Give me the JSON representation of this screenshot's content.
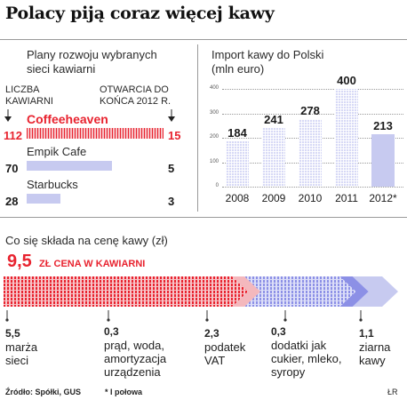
{
  "title": "Polacy piją coraz więcej kawy",
  "left_panel": {
    "subtitle_line1": "Plany rozwoju wybranych",
    "subtitle_line2": "sieci kawiarni",
    "col_left_line1": "LICZBA",
    "col_left_line2": "KAWIARNI",
    "col_right_line1": "OTWARCIA DO",
    "col_right_line2": "KOŃCA 2012 R.",
    "chains": [
      {
        "name": "Coffeeheaven",
        "cafes": "112",
        "openings": "15"
      },
      {
        "name": "Empik Cafe",
        "cafes": "70",
        "openings": "5"
      },
      {
        "name": "Starbucks",
        "cafes": "28",
        "openings": "3"
      }
    ]
  },
  "chart_data": [
    {
      "type": "bar",
      "title": "Import kawy do Polski",
      "ylabel": "(mln euro)",
      "categories": [
        "2008",
        "2009",
        "2010",
        "2011",
        "2012*"
      ],
      "values": [
        184,
        241,
        278,
        400,
        213
      ],
      "ylim": [
        0,
        400
      ],
      "yticks": [
        "0",
        "100",
        "200",
        "300",
        "400"
      ],
      "grid": true
    },
    {
      "type": "bar",
      "title": "Co się składa na cenę kawy (zł)",
      "total_value": "9,5",
      "total_label": "ZŁ CENA W KAWIARNI",
      "categories": [
        "marża sieci",
        "prąd, woda, amortyzacja urządzenia",
        "podatek VAT",
        "dodatki jak cukier, mleko, syropy",
        "ziarna kawy"
      ],
      "values": [
        5.5,
        0.3,
        2.3,
        0.3,
        1.1
      ],
      "value_labels": [
        "5,5",
        "0,3",
        "2,3",
        "0,3",
        "1,1"
      ]
    }
  ],
  "price_segments": [
    {
      "value": "5,5",
      "lines": [
        "marża",
        "sieci"
      ]
    },
    {
      "value": "0,3",
      "lines": [
        "prąd, woda,",
        "amortyzacja",
        "urządzenia"
      ]
    },
    {
      "value": "2,3",
      "lines": [
        "podatek",
        "VAT"
      ]
    },
    {
      "value": "0,3",
      "lines": [
        "dodatki jak",
        "cukier, mleko,",
        "syropy"
      ]
    },
    {
      "value": "1,1",
      "lines": [
        "ziarna",
        "kawy"
      ]
    }
  ],
  "footer": {
    "source": "Źródło: Spółki, GUS",
    "note": "* I połowa",
    "author": "ŁR"
  },
  "colors": {
    "red": "#e8232f",
    "lavender": "#c7caf0",
    "blue": "#8c90e6",
    "pink": "#f4b8bd"
  }
}
